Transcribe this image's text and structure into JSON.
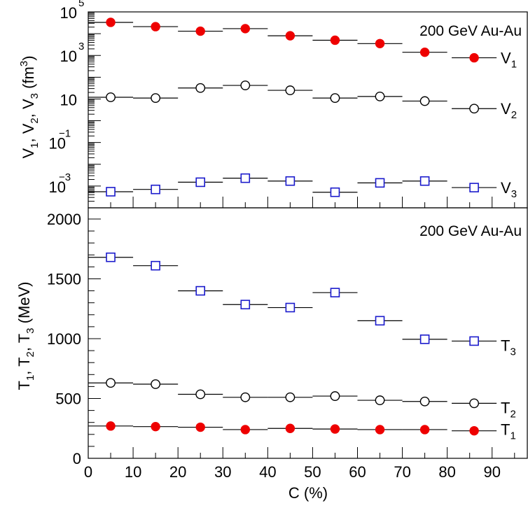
{
  "chart_data": [
    {
      "type": "scatter",
      "annotation": "200 GeV Au-Au",
      "ylabel": {
        "main": "V",
        "sub1": "1",
        "sep1": ", V",
        "sub2": "2",
        "sep2": ", V",
        "sub3": "3",
        "unit": " (fm",
        "sup": "3",
        "close": ")"
      },
      "yscale": "log",
      "ylim": [
        0.0001,
        100000
      ],
      "xlim": [
        0,
        98
      ],
      "y_tick_labels": [
        {
          "value": 100000,
          "base": "10",
          "exp": " 5"
        },
        {
          "value": 1000,
          "base": "10",
          "exp": " 3"
        },
        {
          "value": 10,
          "base": "10",
          "exp": ""
        },
        {
          "value": 0.1,
          "base": "10",
          "exp": "−1"
        },
        {
          "value": 0.001,
          "base": "10",
          "exp": "−3"
        }
      ],
      "bin_half_width": 5,
      "x": [
        5,
        15,
        25,
        35,
        45,
        55,
        65,
        75,
        86
      ],
      "series": [
        {
          "name": "V",
          "sub": "1",
          "marker": "filled-circle",
          "color": "#ee0000",
          "values": [
            33000,
            21000,
            13000,
            17000,
            8000,
            5000,
            3500,
            1400,
            780
          ]
        },
        {
          "name": "V",
          "sub": "2",
          "marker": "open-circle",
          "color": "#000000",
          "values": [
            12,
            11,
            32,
            42,
            25,
            11,
            13,
            8,
            3.6
          ]
        },
        {
          "name": "V",
          "sub": "3",
          "marker": "open-square",
          "color": "#1a1acc",
          "values": [
            0.00055,
            0.0007,
            0.0015,
            0.0023,
            0.0017,
            0.00052,
            0.0014,
            0.0017,
            0.00085
          ]
        }
      ]
    },
    {
      "type": "scatter",
      "annotation": "200 GeV Au-Au",
      "ylabel": {
        "main": "T",
        "sub1": "1",
        "sep1": ", T",
        "sub2": "2",
        "sep2": ", T",
        "sub3": "3",
        "unit": " (MeV)"
      },
      "xlabel": "C (%)",
      "ylim": [
        0,
        2000
      ],
      "xlim": [
        0,
        98
      ],
      "y_ticks": [
        0,
        500,
        1000,
        1500,
        2000
      ],
      "x_ticks": [
        0,
        10,
        20,
        30,
        40,
        50,
        60,
        70,
        80,
        90
      ],
      "bin_half_width": 5,
      "x": [
        5,
        15,
        25,
        35,
        45,
        55,
        65,
        75,
        86
      ],
      "series": [
        {
          "name": "T",
          "sub": "3",
          "marker": "open-square",
          "color": "#1a1acc",
          "values": [
            1680,
            1610,
            1400,
            1285,
            1260,
            1385,
            1150,
            995,
            980
          ]
        },
        {
          "name": "T",
          "sub": "2",
          "marker": "open-circle",
          "color": "#000000",
          "values": [
            630,
            620,
            535,
            510,
            510,
            520,
            485,
            475,
            460
          ]
        },
        {
          "name": "T",
          "sub": "1",
          "marker": "filled-circle",
          "color": "#ee0000",
          "values": [
            270,
            265,
            260,
            240,
            250,
            245,
            240,
            240,
            230
          ]
        }
      ]
    }
  ]
}
